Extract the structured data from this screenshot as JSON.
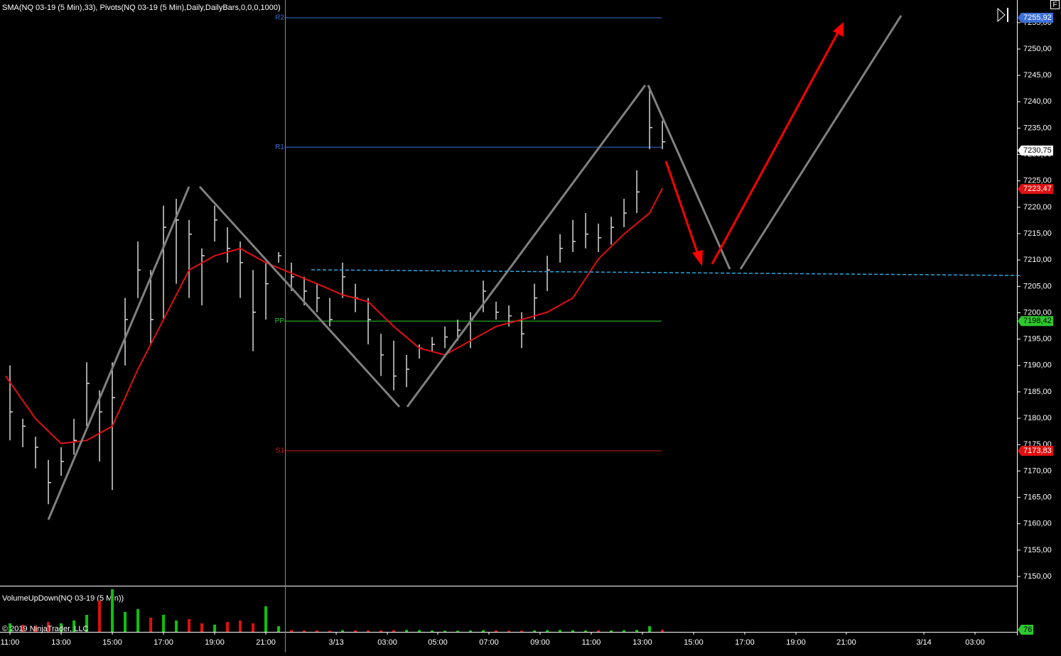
{
  "chart_data": {
    "type": "hlc",
    "header": "SMA(NQ 03-19 (5 Min),33), Pivots(NQ 03-19 (5 Min),Daily,DailyBars,0,0,0,1000)",
    "volume_title": "VolumeUpDown(NQ 03-19 (5 Min))",
    "copyright": "© 2019 NinjaTrader, LLC",
    "corner_button": "F",
    "x": [
      0,
      0.5,
      1,
      1.5,
      2,
      2.5,
      3,
      3.5,
      4,
      4.5,
      5,
      5.5,
      6,
      6.5,
      7,
      7.5,
      8,
      8.5,
      9,
      9.5,
      10,
      10.5,
      11,
      11.5,
      12,
      12.5,
      13,
      13.5,
      14,
      14.5,
      15,
      15.5,
      16,
      16.5,
      17,
      17.5,
      18,
      18.5,
      19,
      19.5,
      20,
      20.5,
      21,
      21.5,
      22,
      22.5,
      23,
      23.5,
      24,
      24.5,
      25,
      25.5
    ],
    "high": [
      7190.0,
      7179.9,
      7176.5,
      7172.1,
      7174.5,
      7179.9,
      7190.6,
      7185.3,
      7190.6,
      7202.8,
      7213.5,
      7208.1,
      7220.3,
      7221.6,
      7217.6,
      7212.2,
      7220.3,
      7216.2,
      7213.5,
      7208.1,
      7209.5,
      7211.5,
      7209.5,
      7206.8,
      7205.5,
      7202.8,
      7209.5,
      7205.5,
      7202.8,
      7196.0,
      7194.7,
      7192.0,
      7194.0,
      7195.4,
      7197.4,
      7198.7,
      7200.1,
      7206.1,
      7202.1,
      7201.4,
      7200.1,
      7205.5,
      7210.8,
      7214.9,
      7217.6,
      7218.9,
      7216.9,
      7218.2,
      7221.6,
      7227.0,
      7242.5,
      7236.4
    ],
    "low": [
      7175.8,
      7174.5,
      7170.5,
      7163.7,
      7169.1,
      7173.1,
      7178.5,
      7171.8,
      7166.4,
      7190.0,
      7202.8,
      7194.0,
      7198.7,
      7205.5,
      7202.8,
      7201.4,
      7213.5,
      7209.5,
      7202.8,
      7192.7,
      7198.7,
      7209.5,
      7204.1,
      7201.4,
      7200.1,
      7197.4,
      7202.8,
      7200.1,
      7194.0,
      7188.0,
      7185.3,
      7185.9,
      7191.3,
      7192.7,
      7193.3,
      7194.7,
      7193.3,
      7200.1,
      7198.7,
      7197.4,
      7193.3,
      7198.7,
      7204.1,
      7209.5,
      7211.5,
      7212.2,
      7211.5,
      7212.9,
      7216.2,
      7218.9,
      7231.0,
      7231.0
    ],
    "close": [
      7181.2,
      7178.5,
      7174.5,
      7167.8,
      7171.8,
      7175.8,
      7186.6,
      7181.2,
      7183.9,
      7198.7,
      7208.1,
      7198.7,
      7216.2,
      7217.6,
      7214.9,
      7210.8,
      7217.6,
      7212.2,
      7209.5,
      7200.1,
      7205.5,
      7210.8,
      7206.8,
      7204.1,
      7202.8,
      7198.7,
      7206.8,
      7202.8,
      7198.7,
      7192.0,
      7188.0,
      7189.3,
      7193.3,
      7194.0,
      7195.4,
      7196.7,
      7198.7,
      7204.1,
      7200.1,
      7199.4,
      7196.0,
      7202.8,
      7208.1,
      7212.2,
      7213.5,
      7214.9,
      7214.2,
      7216.2,
      7218.9,
      7222.9,
      7235.1,
      7232.4
    ],
    "bar_color": "#d8d8d8",
    "sma": {
      "color": "#e01010",
      "x": [
        -0.17,
        1,
        2,
        3,
        4,
        5,
        6,
        7,
        8,
        9,
        10,
        11,
        12,
        13,
        14,
        15,
        16,
        17,
        18,
        19,
        20,
        21,
        22,
        23,
        24,
        25,
        25.5
      ],
      "values": [
        7188.0,
        7179.9,
        7175.2,
        7175.8,
        7178.5,
        7189.3,
        7198.7,
        7208.1,
        7210.8,
        7212.2,
        7209.5,
        7207.5,
        7205.5,
        7203.4,
        7202.1,
        7197.4,
        7193.3,
        7192.0,
        7194.7,
        7197.4,
        7198.7,
        7200.1,
        7202.8,
        7210.2,
        7214.9,
        7218.9,
        7223.6
      ]
    },
    "pivots": [
      {
        "name": "R2",
        "value": 7255.92,
        "color": "#3b6fd6"
      },
      {
        "name": "R1",
        "value": 7231.4,
        "color": "#3b6fd6"
      },
      {
        "name": "PP",
        "value": 7198.42,
        "color": "#2ec82e"
      },
      {
        "name": "S1",
        "value": 7173.83,
        "color": "#d01818"
      }
    ],
    "price_markers": [
      {
        "value": 7255.92,
        "label": "7255,92",
        "color": "#3b6fd6",
        "text_color": "#fff"
      },
      {
        "value": 7230.75,
        "label": "7230,75",
        "color": "#fff",
        "text_color": "#000"
      },
      {
        "value": 7223.47,
        "label": "7223,47",
        "color": "#e01010",
        "text_color": "#fff"
      },
      {
        "value": 7198.42,
        "label": "7198,42",
        "color": "#2ec82e",
        "text_color": "#000"
      },
      {
        "value": 7173.83,
        "label": "7173,83",
        "color": "#e01010",
        "text_color": "#fff"
      }
    ],
    "volume": [
      300,
      250,
      200,
      350,
      300,
      400,
      600,
      1100,
      1500,
      700,
      800,
      500,
      600,
      400,
      450,
      300,
      250,
      350,
      400,
      300,
      900,
      200,
      60,
      50,
      50,
      40,
      60,
      50,
      50,
      50,
      60,
      70,
      60,
      50,
      40,
      40,
      50,
      60,
      50,
      40,
      40,
      50,
      60,
      70,
      60,
      50,
      50,
      50,
      60,
      70,
      200,
      76
    ],
    "volume_ylim": [
      0,
      1600
    ],
    "volume_marker": {
      "value": 76,
      "label": "76",
      "color": "#2ec82e"
    },
    "up_color": "#10c010",
    "down_color": "#e01010",
    "xlim": [
      -0.39,
      39.33
    ],
    "ylim": [
      7148.25,
      7257
    ],
    "xticks": [
      {
        "value": 0,
        "label": "11:00"
      },
      {
        "value": 2,
        "label": "13:00"
      },
      {
        "value": 4,
        "label": "15:00"
      },
      {
        "value": 6,
        "label": "17:00"
      },
      {
        "value": 8,
        "label": "19:00"
      },
      {
        "value": 10,
        "label": "21:00"
      },
      {
        "value": 12.75,
        "label": "3/13"
      },
      {
        "value": 14.75,
        "label": "03:00"
      },
      {
        "value": 16.72,
        "label": "05:00"
      },
      {
        "value": 18.72,
        "label": "07:00"
      },
      {
        "value": 20.72,
        "label": "09:00"
      },
      {
        "value": 22.72,
        "label": "11:00"
      },
      {
        "value": 24.72,
        "label": "13:00"
      },
      {
        "value": 26.72,
        "label": "15:00"
      },
      {
        "value": 28.72,
        "label": "17:00"
      },
      {
        "value": 30.72,
        "label": "19:00"
      },
      {
        "value": 32.69,
        "label": "21:00"
      },
      {
        "value": 35.72,
        "label": "3/14"
      },
      {
        "value": 37.72,
        "label": "03:00"
      }
    ],
    "yticks": [
      {
        "value": 7150,
        "label": "7150,00"
      },
      {
        "value": 7155,
        "label": "7155,00"
      },
      {
        "value": 7160,
        "label": "7160,00"
      },
      {
        "value": 7165,
        "label": "7165,00"
      },
      {
        "value": 7170,
        "label": "7170,00"
      },
      {
        "value": 7175,
        "label": "7175,00"
      },
      {
        "value": 7180,
        "label": "7180,00"
      },
      {
        "value": 7185,
        "label": "7185,00"
      },
      {
        "value": 7190,
        "label": "7190,00"
      },
      {
        "value": 7195,
        "label": "7195,00"
      },
      {
        "value": 7200,
        "label": "7200,00"
      },
      {
        "value": 7205,
        "label": "7205,00"
      },
      {
        "value": 7210,
        "label": "7210,00"
      },
      {
        "value": 7215,
        "label": "7215,00"
      },
      {
        "value": 7220,
        "label": "7220,00"
      },
      {
        "value": 7225,
        "label": "7225,00"
      },
      {
        "value": 7230,
        "label": "7230,00"
      },
      {
        "value": 7235,
        "label": "7235,00"
      },
      {
        "value": 7240,
        "label": "7240,00"
      },
      {
        "value": 7245,
        "label": "7245,00"
      },
      {
        "value": 7250,
        "label": "7250,00"
      },
      {
        "value": 7255,
        "label": "7255,00"
      }
    ]
  }
}
